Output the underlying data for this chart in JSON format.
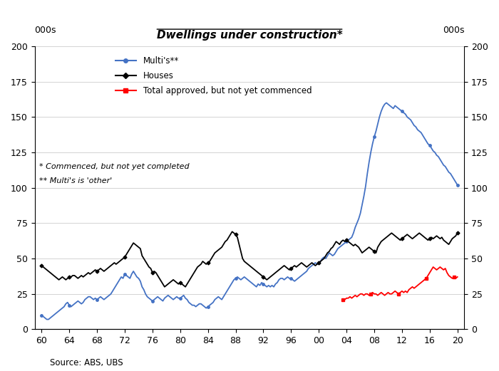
{
  "title": "Dwellings under construction*",
  "ylabel_left": "000s",
  "ylabel_right": "000s",
  "source": "Source: ABS, UBS",
  "footnote1": "* Commenced, but not yet completed",
  "footnote2": "** Multi's is 'other'",
  "ylim": [
    0,
    200
  ],
  "yticks": [
    0,
    25,
    50,
    75,
    100,
    125,
    150,
    175,
    200
  ],
  "xtick_positions": [
    60,
    64,
    68,
    72,
    76,
    80,
    84,
    88,
    92,
    96,
    100,
    104,
    108,
    112,
    116,
    120
  ],
  "xtick_labels": [
    "60",
    "64",
    "68",
    "72",
    "76",
    "80",
    "84",
    "88",
    "92",
    "96",
    "00",
    "04",
    "08",
    "12",
    "16",
    "20"
  ],
  "bg_color": "#ffffff",
  "line_color_multis": "#4472C4",
  "line_color_houses": "#000000",
  "line_color_red": "#FF0000",
  "multis_x": [
    60.0,
    60.25,
    60.5,
    60.75,
    61.0,
    61.25,
    61.5,
    61.75,
    62.0,
    62.25,
    62.5,
    62.75,
    63.0,
    63.25,
    63.5,
    63.75,
    64.0,
    64.25,
    64.5,
    64.75,
    65.0,
    65.25,
    65.5,
    65.75,
    66.0,
    66.25,
    66.5,
    66.75,
    67.0,
    67.25,
    67.5,
    67.75,
    68.0,
    68.25,
    68.5,
    68.75,
    69.0,
    69.25,
    69.5,
    69.75,
    70.0,
    70.25,
    70.5,
    70.75,
    71.0,
    71.25,
    71.5,
    71.75,
    72.0,
    72.25,
    72.5,
    72.75,
    73.0,
    73.25,
    73.5,
    73.75,
    74.0,
    74.25,
    74.5,
    74.75,
    75.0,
    75.25,
    75.5,
    75.75,
    76.0,
    76.25,
    76.5,
    76.75,
    77.0,
    77.25,
    77.5,
    77.75,
    78.0,
    78.25,
    78.5,
    78.75,
    79.0,
    79.25,
    79.5,
    79.75,
    80.0,
    80.25,
    80.5,
    80.75,
    81.0,
    81.25,
    81.5,
    81.75,
    82.0,
    82.25,
    82.5,
    82.75,
    83.0,
    83.25,
    83.5,
    83.75,
    84.0,
    84.25,
    84.5,
    84.75,
    85.0,
    85.25,
    85.5,
    85.75,
    86.0,
    86.25,
    86.5,
    86.75,
    87.0,
    87.25,
    87.5,
    87.75,
    88.0,
    88.25,
    88.5,
    88.75,
    89.0,
    89.25,
    89.5,
    89.75,
    90.0,
    90.25,
    90.5,
    90.75,
    91.0,
    91.25,
    91.5,
    91.75,
    92.0,
    92.25,
    92.5,
    92.75,
    93.0,
    93.25,
    93.5,
    93.75,
    94.0,
    94.25,
    94.5,
    94.75,
    95.0,
    95.25,
    95.5,
    95.75,
    96.0,
    96.25,
    96.5,
    96.75,
    97.0,
    97.25,
    97.5,
    97.75,
    98.0,
    98.25,
    98.5,
    98.75,
    99.0,
    99.25,
    99.5,
    99.75,
    100.0,
    100.25,
    100.5,
    100.75,
    101.0,
    101.25,
    101.5,
    101.75,
    102.0,
    102.25,
    102.5,
    102.75,
    103.0,
    103.25,
    103.5,
    103.75,
    104.0,
    104.25,
    104.5,
    104.75,
    105.0,
    105.25,
    105.5,
    105.75,
    106.0,
    106.25,
    106.5,
    106.75,
    107.0,
    107.25,
    107.5,
    107.75,
    108.0,
    108.25,
    108.5,
    108.75,
    109.0,
    109.25,
    109.5,
    109.75,
    110.0,
    110.25,
    110.5,
    110.75,
    111.0,
    111.25,
    111.5,
    111.75,
    112.0,
    112.25,
    112.5,
    112.75,
    113.0,
    113.25,
    113.5,
    113.75,
    114.0,
    114.25,
    114.5,
    114.75,
    115.0,
    115.25,
    115.5,
    115.75,
    116.0,
    116.25,
    116.5,
    116.75,
    117.0,
    117.25,
    117.5,
    117.75,
    118.0,
    118.25,
    118.5,
    118.75,
    119.0,
    119.25,
    119.5,
    119.75,
    120.0
  ],
  "multis_y": [
    10,
    9,
    8,
    7,
    7,
    8,
    9,
    10,
    11,
    12,
    13,
    14,
    15,
    16,
    18,
    19,
    17,
    16,
    17,
    18,
    19,
    20,
    19,
    18,
    19,
    21,
    22,
    23,
    23,
    22,
    21,
    22,
    21,
    22,
    23,
    22,
    21,
    22,
    23,
    24,
    25,
    27,
    29,
    31,
    33,
    35,
    37,
    36,
    39,
    38,
    37,
    36,
    39,
    41,
    39,
    37,
    36,
    34,
    30,
    28,
    25,
    23,
    22,
    21,
    20,
    21,
    22,
    23,
    22,
    21,
    20,
    22,
    23,
    24,
    23,
    22,
    21,
    22,
    23,
    22,
    22,
    23,
    24,
    22,
    21,
    19,
    18,
    17,
    17,
    16,
    17,
    18,
    18,
    17,
    16,
    15,
    16,
    17,
    18,
    19,
    21,
    22,
    23,
    22,
    21,
    23,
    25,
    27,
    29,
    31,
    33,
    35,
    36,
    37,
    36,
    35,
    36,
    37,
    36,
    35,
    34,
    33,
    32,
    31,
    30,
    32,
    31,
    33,
    32,
    31,
    30,
    31,
    30,
    31,
    30,
    32,
    33,
    35,
    36,
    36,
    35,
    36,
    37,
    36,
    36,
    35,
    34,
    35,
    36,
    37,
    38,
    39,
    40,
    41,
    43,
    44,
    45,
    46,
    47,
    46,
    47,
    48,
    50,
    51,
    50,
    52,
    54,
    53,
    52,
    53,
    55,
    57,
    58,
    59,
    60,
    61,
    62,
    63,
    64,
    65,
    68,
    72,
    75,
    78,
    82,
    88,
    94,
    101,
    110,
    118,
    125,
    131,
    136,
    140,
    145,
    150,
    154,
    157,
    159,
    160,
    159,
    158,
    157,
    156,
    158,
    157,
    156,
    155,
    154,
    153,
    152,
    150,
    149,
    148,
    146,
    144,
    143,
    141,
    140,
    139,
    137,
    135,
    133,
    131,
    130,
    128,
    126,
    125,
    123,
    122,
    120,
    118,
    116,
    115,
    113,
    111,
    110,
    108,
    106,
    104,
    102,
    100
  ],
  "houses_x": [
    60.0,
    60.25,
    60.5,
    60.75,
    61.0,
    61.25,
    61.5,
    61.75,
    62.0,
    62.25,
    62.5,
    62.75,
    63.0,
    63.25,
    63.5,
    63.75,
    64.0,
    64.25,
    64.5,
    64.75,
    65.0,
    65.25,
    65.5,
    65.75,
    66.0,
    66.25,
    66.5,
    66.75,
    67.0,
    67.25,
    67.5,
    67.75,
    68.0,
    68.25,
    68.5,
    68.75,
    69.0,
    69.25,
    69.5,
    69.75,
    70.0,
    70.25,
    70.5,
    70.75,
    71.0,
    71.25,
    71.5,
    71.75,
    72.0,
    72.25,
    72.5,
    72.75,
    73.0,
    73.25,
    73.5,
    73.75,
    74.0,
    74.25,
    74.5,
    74.75,
    75.0,
    75.25,
    75.5,
    75.75,
    76.0,
    76.25,
    76.5,
    76.75,
    77.0,
    77.25,
    77.5,
    77.75,
    78.0,
    78.25,
    78.5,
    78.75,
    79.0,
    79.25,
    79.5,
    79.75,
    80.0,
    80.25,
    80.5,
    80.75,
    81.0,
    81.25,
    81.5,
    81.75,
    82.0,
    82.25,
    82.5,
    82.75,
    83.0,
    83.25,
    83.5,
    83.75,
    84.0,
    84.25,
    84.5,
    84.75,
    85.0,
    85.25,
    85.5,
    85.75,
    86.0,
    86.25,
    86.5,
    86.75,
    87.0,
    87.25,
    87.5,
    87.75,
    88.0,
    88.25,
    88.5,
    88.75,
    89.0,
    89.25,
    89.5,
    89.75,
    90.0,
    90.25,
    90.5,
    90.75,
    91.0,
    91.25,
    91.5,
    91.75,
    92.0,
    92.25,
    92.5,
    92.75,
    93.0,
    93.25,
    93.5,
    93.75,
    94.0,
    94.25,
    94.5,
    94.75,
    95.0,
    95.25,
    95.5,
    95.75,
    96.0,
    96.25,
    96.5,
    96.75,
    97.0,
    97.25,
    97.5,
    97.75,
    98.0,
    98.25,
    98.5,
    98.75,
    99.0,
    99.25,
    99.5,
    99.75,
    100.0,
    100.25,
    100.5,
    100.75,
    101.0,
    101.25,
    101.5,
    101.75,
    102.0,
    102.25,
    102.5,
    102.75,
    103.0,
    103.25,
    103.5,
    103.75,
    104.0,
    104.25,
    104.5,
    104.75,
    105.0,
    105.25,
    105.5,
    105.75,
    106.0,
    106.25,
    106.5,
    106.75,
    107.0,
    107.25,
    107.5,
    107.75,
    108.0,
    108.25,
    108.5,
    108.75,
    109.0,
    109.25,
    109.5,
    109.75,
    110.0,
    110.25,
    110.5,
    110.75,
    111.0,
    111.25,
    111.5,
    111.75,
    112.0,
    112.25,
    112.5,
    112.75,
    113.0,
    113.25,
    113.5,
    113.75,
    114.0,
    114.25,
    114.5,
    114.75,
    115.0,
    115.25,
    115.5,
    115.75,
    116.0,
    116.25,
    116.5,
    116.75,
    117.0,
    117.25,
    117.5,
    117.75,
    118.0,
    118.25,
    118.5,
    118.75,
    119.0,
    119.25,
    119.5,
    119.75,
    120.0
  ],
  "houses_y": [
    45,
    44,
    43,
    42,
    41,
    40,
    39,
    38,
    37,
    36,
    35,
    36,
    37,
    36,
    35,
    36,
    37,
    37,
    38,
    38,
    37,
    36,
    37,
    38,
    37,
    38,
    39,
    40,
    39,
    40,
    41,
    42,
    41,
    42,
    43,
    42,
    41,
    42,
    43,
    44,
    45,
    46,
    47,
    46,
    47,
    48,
    49,
    50,
    51,
    53,
    55,
    57,
    59,
    61,
    60,
    59,
    58,
    57,
    52,
    50,
    48,
    46,
    44,
    43,
    40,
    41,
    40,
    38,
    36,
    34,
    32,
    30,
    31,
    32,
    33,
    34,
    35,
    34,
    33,
    32,
    33,
    32,
    31,
    30,
    32,
    34,
    36,
    38,
    40,
    42,
    44,
    45,
    46,
    48,
    47,
    46,
    47,
    48,
    50,
    52,
    54,
    55,
    56,
    57,
    58,
    60,
    62,
    63,
    65,
    67,
    69,
    68,
    67,
    65,
    60,
    55,
    50,
    48,
    47,
    46,
    45,
    44,
    43,
    42,
    41,
    40,
    39,
    38,
    37,
    36,
    35,
    36,
    37,
    38,
    39,
    40,
    41,
    42,
    43,
    44,
    45,
    44,
    43,
    42,
    43,
    44,
    45,
    44,
    45,
    46,
    47,
    46,
    45,
    44,
    45,
    46,
    47,
    46,
    45,
    46,
    47,
    48,
    49,
    50,
    52,
    54,
    55,
    57,
    58,
    60,
    62,
    61,
    60,
    62,
    63,
    62,
    63,
    62,
    61,
    60,
    59,
    60,
    59,
    58,
    56,
    54,
    55,
    56,
    57,
    58,
    57,
    56,
    55,
    54,
    58,
    60,
    62,
    63,
    64,
    65,
    66,
    67,
    68,
    67,
    66,
    65,
    64,
    63,
    64,
    65,
    66,
    67,
    66,
    65,
    64,
    65,
    66,
    67,
    68,
    67,
    66,
    65,
    64,
    63,
    64,
    65,
    64,
    65,
    66,
    65,
    64,
    65,
    63,
    62,
    61,
    60,
    62,
    64,
    65,
    66,
    68,
    70
  ],
  "red_x": [
    103.5,
    103.75,
    104.0,
    104.25,
    104.5,
    104.75,
    105.0,
    105.25,
    105.5,
    105.75,
    106.0,
    106.25,
    106.5,
    106.75,
    107.0,
    107.25,
    107.5,
    107.75,
    108.0,
    108.25,
    108.5,
    108.75,
    109.0,
    109.25,
    109.5,
    109.75,
    110.0,
    110.25,
    110.5,
    110.75,
    111.0,
    111.25,
    111.5,
    111.75,
    112.0,
    112.25,
    112.5,
    112.75,
    113.0,
    113.25,
    113.5,
    113.75,
    114.0,
    114.25,
    114.5,
    114.75,
    115.0,
    115.25,
    115.5,
    115.75,
    116.0,
    116.25,
    116.5,
    116.75,
    117.0,
    117.25,
    117.5,
    117.75,
    118.0,
    118.25,
    118.5,
    118.75,
    119.0,
    119.25,
    119.5,
    119.75,
    120.0
  ],
  "red_y": [
    21,
    21,
    22,
    22,
    23,
    22,
    23,
    24,
    23,
    24,
    25,
    25,
    24,
    25,
    25,
    24,
    25,
    26,
    25,
    25,
    24,
    25,
    26,
    25,
    24,
    25,
    26,
    25,
    25,
    26,
    27,
    26,
    25,
    26,
    27,
    26,
    27,
    26,
    28,
    29,
    30,
    29,
    30,
    31,
    32,
    33,
    34,
    35,
    36,
    38,
    40,
    42,
    44,
    43,
    42,
    43,
    44,
    43,
    42,
    43,
    40,
    38,
    37,
    36,
    37,
    36,
    37
  ]
}
